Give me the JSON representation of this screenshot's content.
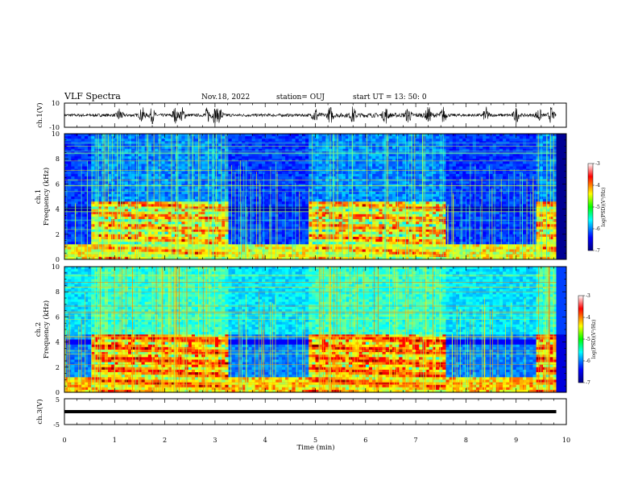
{
  "header": {
    "title": "VLF Spectra",
    "date": "Nov.18, 2022",
    "station": "station= OUJ",
    "start": "start  UT  =   13: 50: 0"
  },
  "chart_data": {
    "type": "heatmap",
    "x_axis": {
      "label": "Time  (min)",
      "range": [
        0,
        10
      ],
      "ticks": [
        "0",
        "1",
        "2",
        "3",
        "4",
        "5",
        "6",
        "7",
        "8",
        "9",
        "10"
      ]
    },
    "panels": [
      {
        "id": "ch1-waveform",
        "type": "line",
        "ylabel": "ch.1(V)",
        "ylim": [
          -10,
          10
        ],
        "ytick_labels": [
          "10",
          "-10"
        ],
        "data_end_min": 9.8
      },
      {
        "id": "ch1-spectrogram",
        "type": "heatmap",
        "ylabel": "ch.1\nFrequency (kHz)",
        "ylabel_parts": [
          "ch.1",
          "Frequency  (kHz)"
        ],
        "ylim": [
          0,
          10
        ],
        "ytick_labels": [
          "0",
          "2",
          "4",
          "6",
          "8",
          "10"
        ],
        "colorbar": {
          "label": "log(PSD)(V²/Hz)",
          "range": [
            -7,
            -3
          ],
          "tick_labels": [
            "-3",
            "-4",
            "-5",
            "-6",
            "-7"
          ]
        },
        "segments_min": [
          {
            "start": 0.0,
            "end": 0.55,
            "level": "quiet"
          },
          {
            "start": 0.55,
            "end": 3.25,
            "level": "active"
          },
          {
            "start": 3.25,
            "end": 4.9,
            "level": "quiet"
          },
          {
            "start": 4.9,
            "end": 7.6,
            "level": "active"
          },
          {
            "start": 7.6,
            "end": 9.4,
            "level": "quiet"
          },
          {
            "start": 9.4,
            "end": 9.8,
            "level": "active"
          }
        ]
      },
      {
        "id": "ch2-spectrogram",
        "type": "heatmap",
        "ylabel_parts": [
          "ch.2",
          "Frequency  (kHz)"
        ],
        "ylim": [
          0,
          10
        ],
        "ytick_labels": [
          "0",
          "2",
          "4",
          "6",
          "8",
          "10"
        ],
        "colorbar": {
          "label": "log(PSD)(V²/Hz)",
          "range": [
            -7,
            -3
          ],
          "tick_labels": [
            "-3",
            "-4",
            "-5",
            "-6",
            "-7"
          ]
        },
        "segments_min": [
          {
            "start": 0.0,
            "end": 0.55,
            "level": "quiet"
          },
          {
            "start": 0.55,
            "end": 3.25,
            "level": "active"
          },
          {
            "start": 3.25,
            "end": 4.9,
            "level": "quiet"
          },
          {
            "start": 4.9,
            "end": 7.6,
            "level": "active"
          },
          {
            "start": 7.6,
            "end": 9.4,
            "level": "quiet"
          },
          {
            "start": 9.4,
            "end": 9.8,
            "level": "active"
          }
        ]
      },
      {
        "id": "ch3-waveform",
        "type": "line",
        "ylabel": "ch.3(V)",
        "ylim": [
          -5,
          5
        ],
        "ytick_labels": [
          "5",
          "-5"
        ],
        "constant_value": 0,
        "data_end_min": 9.8
      }
    ]
  }
}
